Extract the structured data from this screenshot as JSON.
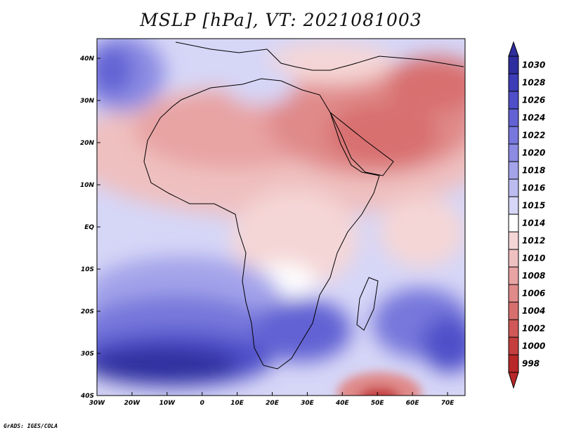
{
  "title": "MSLP [hPa], VT: 2021081003",
  "footer": "GrADS: IGES/COLA",
  "map": {
    "projection": "lat-lon",
    "lon_range": [
      -30,
      75
    ],
    "lat_range": [
      -40,
      45
    ],
    "x_ticks": [
      "30W",
      "20W",
      "10W",
      "0",
      "10E",
      "20E",
      "30E",
      "40E",
      "50E",
      "60E",
      "70E"
    ],
    "y_ticks": [
      "40N",
      "30N",
      "20N",
      "10N",
      "EQ",
      "10S",
      "20S",
      "30S",
      "40S"
    ]
  },
  "colorbar": {
    "levels": [
      "1030",
      "1028",
      "1026",
      "1024",
      "1022",
      "1020",
      "1018",
      "1016",
      "1015",
      "1014",
      "1012",
      "1010",
      "1008",
      "1006",
      "1004",
      "1002",
      "1000",
      "998"
    ],
    "colors": [
      "#2e2e9e",
      "#3d3db8",
      "#4f4fc9",
      "#6262d4",
      "#7777dc",
      "#8b8be3",
      "#a3a3ea",
      "#bcbcf1",
      "#d6d6f7",
      "#ffffff",
      "#f5d6d6",
      "#efc0c0",
      "#e8a3a3",
      "#e08a8a",
      "#d86f6f",
      "#d05858",
      "#c43e3e",
      "#b82828"
    ]
  }
}
